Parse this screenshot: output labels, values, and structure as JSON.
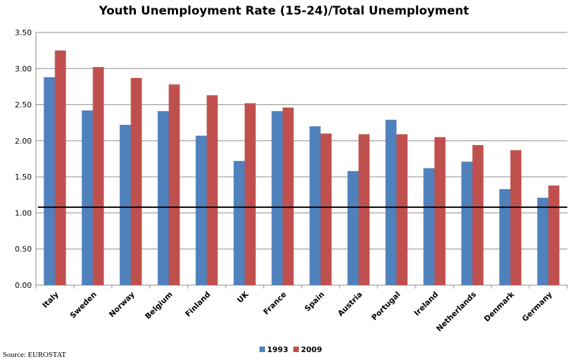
{
  "chart_data": {
    "type": "bar",
    "title": "Youth Unemployment Rate (15-24)/Total Unemployment",
    "categories": [
      "Italy",
      "Sweden",
      "Norway",
      "Belgium",
      "Finland",
      "UK",
      "France",
      "Spain",
      "Austria",
      "Portugal",
      "Ireland",
      "Netherlands",
      "Denmark",
      "Germany"
    ],
    "series": [
      {
        "name": "1993",
        "color": "#4f81bd",
        "values": [
          2.88,
          2.42,
          2.22,
          2.41,
          2.07,
          1.72,
          2.41,
          2.2,
          1.58,
          2.29,
          1.62,
          1.71,
          1.33,
          1.21
        ]
      },
      {
        "name": "2009",
        "color": "#c0504d",
        "values": [
          3.25,
          3.02,
          2.87,
          2.78,
          2.63,
          2.52,
          2.46,
          2.1,
          2.09,
          2.09,
          2.05,
          1.94,
          1.87,
          1.38
        ]
      }
    ],
    "y_ticks": [
      "0.00",
      "0.50",
      "1.00",
      "1.50",
      "2.00",
      "2.50",
      "3.00",
      "3.50"
    ],
    "ylim": [
      0,
      3.5
    ],
    "reference_line": {
      "value": 1.08,
      "color": "#000000"
    },
    "grid": true,
    "legend_position": "bottom-center",
    "source": "Source: EUROSTAT"
  }
}
